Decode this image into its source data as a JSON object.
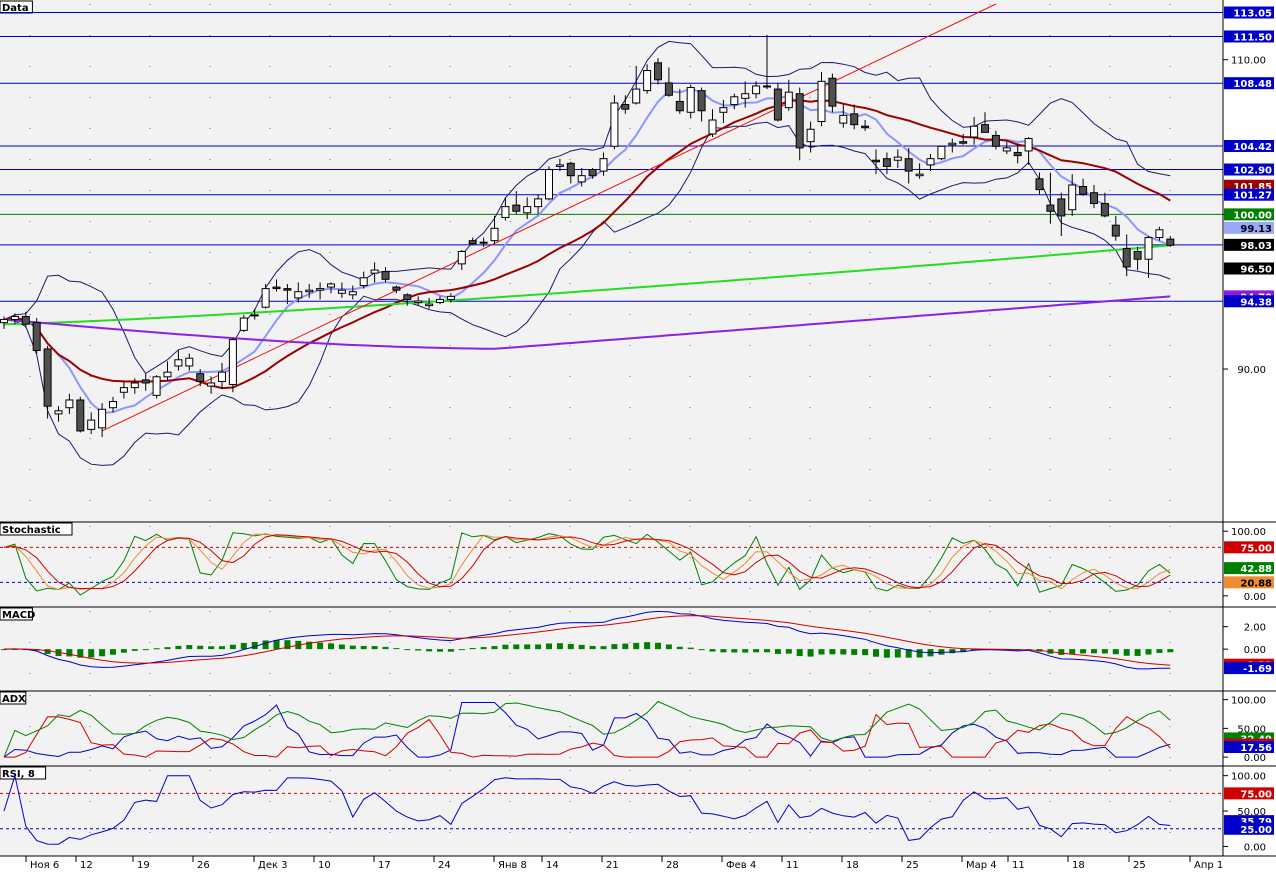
{
  "chart_data": {
    "type": "candlestick",
    "x_labels": [
      "Ноя 6",
      "12",
      "19",
      "26",
      "Дек 3",
      "10",
      "17",
      "24",
      "Янв 8",
      "14",
      "21",
      "28",
      "Фев 4",
      "11",
      "18",
      "25",
      "Мар 4",
      "11",
      "18",
      "25",
      "Апр 1"
    ],
    "panels": [
      {
        "title": "Data",
        "ylim": [
          80.5,
          113.6
        ],
        "ticks": [
          "110.00",
          "100.00",
          "90.00"
        ],
        "tick_values": [
          110,
          100,
          90
        ],
        "h_lines_blue": [
          113.05,
          111.5,
          108.48,
          104.42,
          102.9,
          101.27,
          98.03,
          94.38
        ],
        "h_line_green": 100.0,
        "price_labels": [
          {
            "text": "113.05",
            "value": 113.05,
            "color": "#0000c8"
          },
          {
            "text": "111.50",
            "value": 111.5,
            "color": "#0000c8"
          },
          {
            "text": "108.48",
            "value": 108.48,
            "color": "#0000c8"
          },
          {
            "text": "104.42",
            "value": 104.42,
            "color": "#0000c8"
          },
          {
            "text": "102.90",
            "value": 102.9,
            "color": "#0000c8"
          },
          {
            "text": "101.85",
            "value": 101.85,
            "color": "#a00000"
          },
          {
            "text": "101.27",
            "value": 101.27,
            "color": "#0000c8"
          },
          {
            "text": "100.00",
            "value": 100.0,
            "color": "#008000"
          },
          {
            "text": "99.13",
            "value": 99.13,
            "color": "#9aa8f8"
          },
          {
            "text": "98.03",
            "value": 98.03,
            "color": "#000000"
          },
          {
            "text": "96.50",
            "value": 96.5,
            "color": "#000000"
          },
          {
            "text": "94.70",
            "value": 94.7,
            "color": "#8a1ee0"
          },
          {
            "text": "94.38",
            "value": 94.38,
            "color": "#0000c8"
          }
        ],
        "candles_ohlc": [
          [
            93.0,
            93.4,
            92.6,
            93.2
          ],
          [
            93.2,
            93.6,
            92.9,
            93.4
          ],
          [
            93.4,
            93.7,
            92.7,
            92.9
          ],
          [
            93.0,
            93.3,
            91.0,
            91.2
          ],
          [
            91.3,
            91.5,
            86.8,
            87.6
          ],
          [
            87.1,
            87.6,
            86.6,
            87.3
          ],
          [
            87.5,
            88.4,
            87.1,
            88.0
          ],
          [
            88.0,
            88.2,
            85.9,
            86.0
          ],
          [
            86.1,
            87.2,
            85.8,
            86.7
          ],
          [
            86.2,
            87.8,
            85.6,
            87.4
          ],
          [
            87.5,
            88.2,
            87.2,
            87.9
          ],
          [
            88.5,
            89.2,
            88.1,
            88.8
          ],
          [
            88.8,
            89.4,
            88.4,
            89.1
          ],
          [
            89.3,
            89.7,
            88.6,
            89.1
          ],
          [
            88.3,
            89.6,
            88.1,
            89.5
          ],
          [
            89.5,
            90.5,
            89.2,
            89.8
          ],
          [
            90.2,
            91.2,
            89.9,
            90.6
          ],
          [
            90.2,
            91.0,
            89.9,
            90.7
          ],
          [
            89.7,
            90.0,
            88.9,
            89.2
          ],
          [
            88.9,
            89.5,
            88.4,
            89.1
          ],
          [
            89.2,
            90.4,
            88.7,
            89.8
          ],
          [
            89.0,
            92.0,
            88.5,
            91.9
          ],
          [
            92.5,
            93.5,
            92.4,
            93.3
          ],
          [
            93.5,
            93.9,
            93.2,
            93.5
          ],
          [
            94.0,
            95.5,
            93.9,
            95.2
          ],
          [
            95.3,
            95.8,
            95.0,
            95.2
          ],
          [
            95.2,
            95.5,
            94.2,
            95.1
          ],
          [
            94.6,
            95.6,
            94.3,
            95.0
          ],
          [
            95.0,
            95.5,
            94.6,
            95.1
          ],
          [
            95.1,
            95.6,
            94.5,
            95.2
          ],
          [
            95.3,
            95.6,
            94.9,
            95.5
          ],
          [
            94.9,
            95.6,
            94.6,
            95.1
          ],
          [
            94.8,
            95.4,
            94.5,
            95.0
          ],
          [
            95.4,
            96.3,
            95.2,
            95.9
          ],
          [
            96.2,
            96.9,
            95.6,
            96.4
          ],
          [
            96.3,
            96.6,
            95.6,
            95.8
          ],
          [
            95.3,
            95.4,
            94.9,
            95.1
          ],
          [
            94.8,
            94.9,
            94.1,
            94.5
          ],
          [
            94.3,
            94.7,
            94.1,
            94.4
          ],
          [
            94.1,
            94.6,
            93.9,
            94.2
          ],
          [
            94.3,
            94.7,
            94.2,
            94.5
          ],
          [
            94.5,
            94.9,
            94.3,
            94.7
          ],
          [
            96.8,
            97.7,
            96.4,
            97.6
          ],
          [
            98.3,
            98.5,
            98.0,
            98.1
          ],
          [
            98.2,
            98.5,
            97.9,
            98.2
          ],
          [
            98.3,
            99.9,
            98.1,
            99.1
          ],
          [
            99.8,
            101.1,
            99.6,
            100.5
          ],
          [
            100.6,
            101.5,
            100.0,
            100.2
          ],
          [
            100.1,
            101.1,
            99.7,
            100.5
          ],
          [
            100.5,
            101.3,
            100.0,
            101.0
          ],
          [
            101.0,
            103.1,
            100.9,
            102.9
          ],
          [
            103.1,
            103.6,
            102.8,
            103.2
          ],
          [
            103.3,
            103.4,
            102.0,
            102.5
          ],
          [
            102.1,
            103.0,
            101.8,
            102.5
          ],
          [
            102.9,
            103.0,
            102.3,
            102.5
          ],
          [
            102.8,
            104.0,
            102.5,
            103.6
          ],
          [
            104.4,
            107.7,
            104.2,
            107.2
          ],
          [
            107.1,
            107.7,
            106.5,
            106.8
          ],
          [
            107.2,
            109.6,
            107.1,
            108.1
          ],
          [
            108.0,
            109.7,
            107.8,
            109.3
          ],
          [
            109.8,
            110.1,
            108.4,
            108.7
          ],
          [
            108.5,
            109.5,
            107.6,
            107.7
          ],
          [
            107.3,
            108.1,
            106.5,
            106.7
          ],
          [
            106.6,
            108.4,
            106.2,
            108.2
          ],
          [
            108.0,
            108.2,
            106.0,
            106.7
          ],
          [
            105.2,
            106.8,
            105.0,
            106.1
          ],
          [
            106.6,
            107.4,
            105.9,
            106.9
          ],
          [
            107.1,
            107.8,
            106.8,
            107.6
          ],
          [
            107.5,
            108.6,
            106.9,
            107.8
          ],
          [
            107.8,
            108.6,
            107.5,
            108.3
          ],
          [
            108.3,
            111.6,
            108.1,
            108.3
          ],
          [
            108.1,
            108.5,
            106.0,
            106.1
          ],
          [
            106.9,
            108.7,
            106.7,
            107.9
          ],
          [
            107.8,
            108.2,
            103.5,
            104.3
          ],
          [
            104.7,
            106.0,
            104.0,
            105.5
          ],
          [
            106.0,
            109.2,
            105.7,
            108.6
          ],
          [
            108.8,
            109.1,
            106.6,
            107.0
          ],
          [
            105.9,
            107.1,
            105.6,
            106.4
          ],
          [
            106.5,
            107.1,
            105.5,
            105.8
          ],
          [
            105.7,
            106.1,
            105.4,
            105.6
          ],
          [
            103.5,
            104.2,
            102.6,
            103.4
          ],
          [
            103.6,
            104.0,
            102.6,
            103.1
          ],
          [
            103.5,
            104.2,
            103.0,
            103.7
          ],
          [
            103.6,
            104.3,
            102.0,
            102.8
          ],
          [
            102.5,
            103.3,
            102.3,
            102.6
          ],
          [
            103.2,
            103.9,
            102.8,
            103.6
          ],
          [
            103.6,
            104.3,
            103.5,
            104.4
          ],
          [
            104.5,
            104.9,
            104.0,
            104.6
          ],
          [
            104.7,
            105.2,
            104.5,
            104.6
          ],
          [
            105.0,
            106.3,
            104.5,
            105.7
          ],
          [
            105.8,
            106.6,
            105.4,
            105.3
          ],
          [
            105.1,
            105.4,
            104.2,
            104.4
          ],
          [
            104.1,
            104.7,
            103.9,
            104.3
          ],
          [
            104.0,
            104.6,
            103.3,
            103.8
          ],
          [
            104.1,
            105.0,
            103.2,
            104.9
          ],
          [
            102.3,
            102.7,
            101.3,
            101.6
          ],
          [
            100.6,
            102.7,
            99.4,
            100.2
          ],
          [
            101.0,
            101.4,
            98.6,
            99.9
          ],
          [
            100.3,
            102.6,
            99.9,
            101.9
          ],
          [
            101.8,
            102.3,
            101.2,
            101.3
          ],
          [
            101.4,
            101.9,
            100.4,
            100.7
          ],
          [
            100.7,
            101.4,
            99.8,
            99.9
          ],
          [
            99.3,
            99.9,
            98.3,
            98.6
          ],
          [
            97.8,
            98.7,
            96.0,
            96.6
          ],
          [
            97.6,
            97.9,
            96.4,
            97.1
          ],
          [
            97.1,
            98.6,
            95.9,
            98.5
          ],
          [
            98.5,
            99.2,
            98.3,
            99.0
          ],
          [
            98.4,
            98.6,
            97.9,
            98.0
          ]
        ]
      },
      {
        "title": "Stochastic",
        "ylim": [
          -8,
          108
        ],
        "ticks": [
          "100.00",
          "0.00"
        ],
        "tick_values": [
          100,
          0
        ],
        "levels": [
          75,
          20.88
        ],
        "price_labels": [
          {
            "text": "75.00",
            "value": 75,
            "color": "#d00000"
          },
          {
            "text": "42.88",
            "value": 42.88,
            "color": "#008000"
          },
          {
            "text": "20.88",
            "value": 20.88,
            "color": "#f08c30"
          }
        ]
      },
      {
        "title": "MACD",
        "ylim": [
          -3.2,
          3.4
        ],
        "ticks": [
          "2.00",
          "0.00"
        ],
        "tick_values": [
          2,
          0
        ],
        "price_labels": [
          {
            "text": "-1.39",
            "value": -1.39,
            "color": "#d00000"
          },
          {
            "text": "-1.69",
            "value": -1.69,
            "color": "#0000c8"
          }
        ]
      },
      {
        "title": "ADX",
        "ylim": [
          -5,
          108
        ],
        "ticks": [
          "100.00",
          "50.00",
          "0.00"
        ],
        "tick_values": [
          100,
          50,
          0
        ],
        "price_labels": [
          {
            "text": "32.49",
            "value": 32.49,
            "color": "#008000"
          },
          {
            "text": "21.80",
            "value": 21.8,
            "color": "#d00000"
          },
          {
            "text": "17.56",
            "value": 17.56,
            "color": "#0000c8"
          }
        ]
      },
      {
        "title": "RSI, 8",
        "ylim": [
          -5,
          108
        ],
        "ticks": [
          "100.00",
          "50.00",
          "0.00"
        ],
        "tick_values": [
          100,
          50,
          0
        ],
        "levels": [
          75,
          25
        ],
        "price_labels": [
          {
            "text": "75.00",
            "value": 75,
            "color": "#d00000"
          },
          {
            "text": "35.79",
            "value": 35.79,
            "color": "#0000c8"
          },
          {
            "text": "25.00",
            "value": 25,
            "color": "#0000c8"
          }
        ]
      }
    ]
  },
  "colors": {
    "up": "#ffffff",
    "down": "#505050",
    "sma_red": "#9b0000",
    "ema_light": "#8c96ff",
    "sma_green": "#22dd22",
    "sma_purple": "#8c20e8",
    "grid_blue": "#0000c8",
    "band": "#1a1a6a",
    "trend": "#ee1010"
  }
}
